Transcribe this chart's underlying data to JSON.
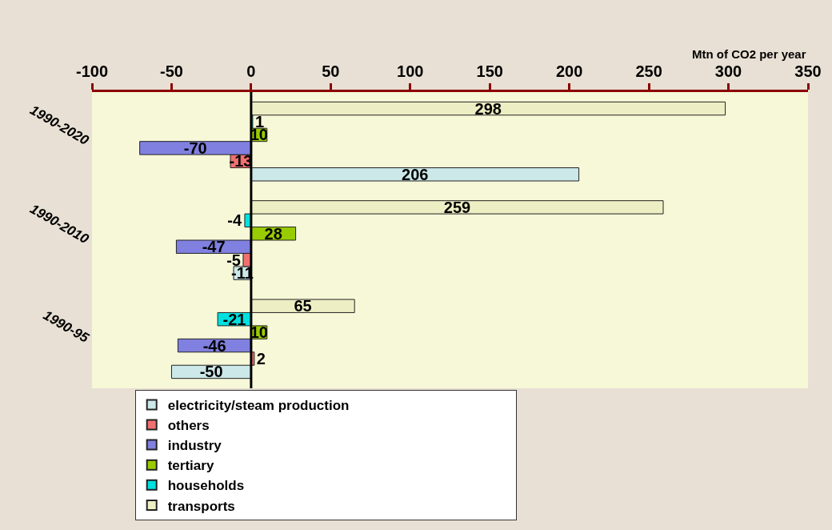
{
  "chart_data": {
    "type": "bar",
    "orientation": "horizontal",
    "xlabel": "Mtn of CO2 per year",
    "categories": [
      "1990-2020",
      "1990-2010",
      "1990-95"
    ],
    "series": [
      {
        "name": "electricity/steam production",
        "color": "#cce8e8",
        "values": [
          206,
          -11,
          -50
        ]
      },
      {
        "name": "others",
        "color": "#f07070",
        "values": [
          -13,
          -5,
          2
        ]
      },
      {
        "name": "industry",
        "color": "#8080e0",
        "values": [
          -70,
          -47,
          -46
        ]
      },
      {
        "name": "tertiary",
        "color": "#99cc00",
        "values": [
          10,
          28,
          10
        ]
      },
      {
        "name": "households",
        "color": "#00e0e0",
        "values": [
          1,
          -4,
          -21
        ]
      },
      {
        "name": "transports",
        "color": "#eeeec4",
        "values": [
          298,
          259,
          65
        ]
      }
    ],
    "xlim": [
      -100,
      350
    ],
    "xticks": [
      -100,
      -50,
      0,
      50,
      100,
      150,
      200,
      250,
      300,
      350
    ],
    "ref_lines": [
      {
        "axis": "x",
        "value": 0,
        "color": "#000000"
      }
    ],
    "data_labels": true,
    "grid": false,
    "legend": "bottom"
  }
}
